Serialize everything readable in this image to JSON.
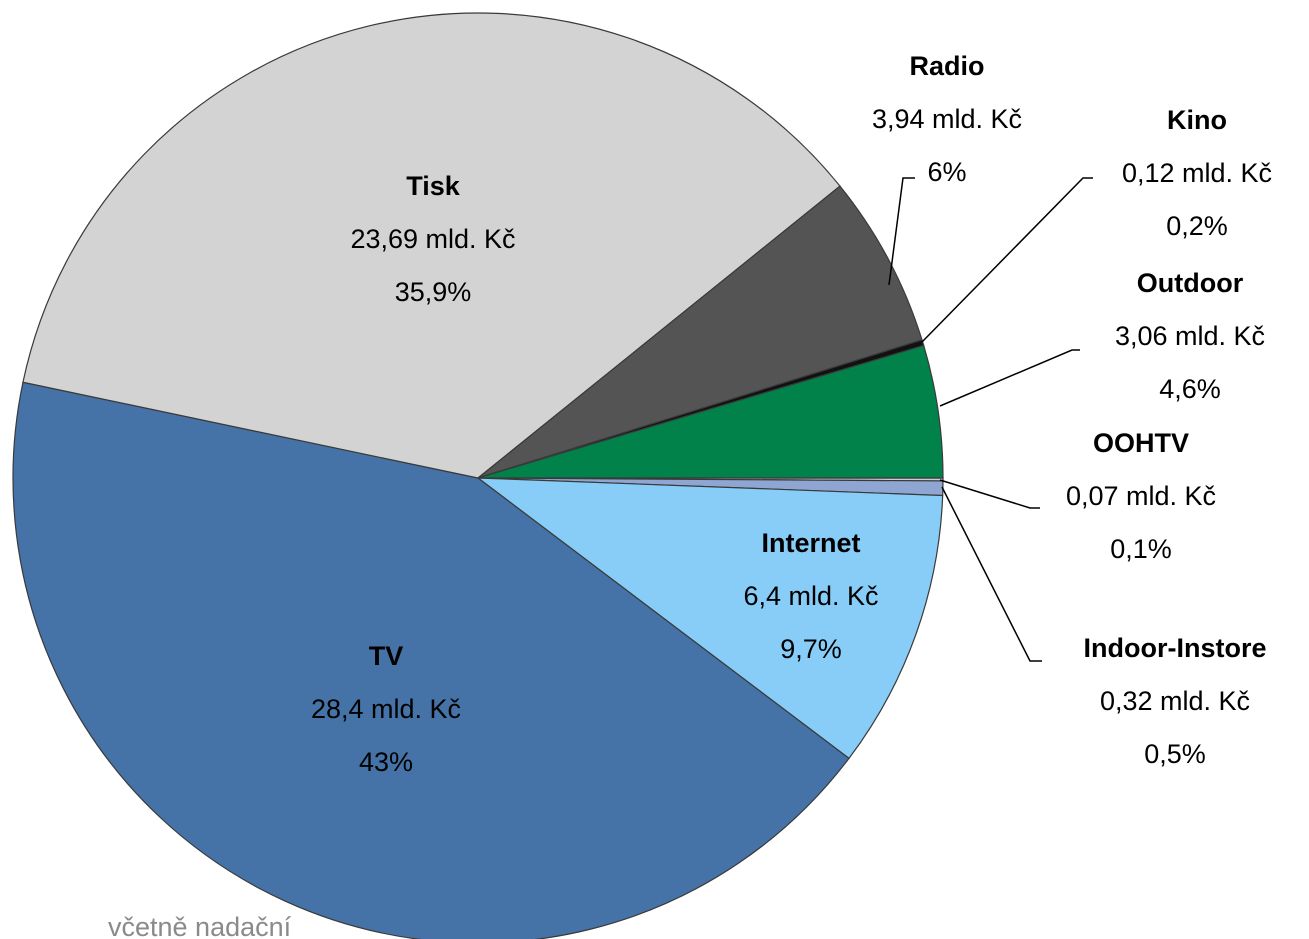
{
  "chart_data": {
    "type": "pie",
    "categories": [
      "OOHTV",
      "Indoor-Instore",
      "Internet",
      "TV",
      "Tisk",
      "Radio",
      "Kino",
      "Outdoor"
    ],
    "values": [
      0.1,
      0.5,
      9.7,
      43,
      35.9,
      6,
      0.2,
      4.6
    ],
    "value_labels": [
      "0,1%",
      "0,5%",
      "9,7%",
      "43%",
      "35,9%",
      "6%",
      "0,2%",
      "4,6%"
    ],
    "amounts": [
      0.07,
      0.32,
      6.4,
      28.4,
      23.69,
      3.94,
      0.12,
      3.06
    ],
    "amount_labels": [
      "0,07 mld. Kč",
      "0,32 mld. Kč",
      "6,4 mld. Kč",
      "28,4 mld. Kč",
      "23,69 mld. Kč",
      "3,94 mld. Kč",
      "0,12 mld. Kč",
      "3,06 mld. Kč"
    ],
    "colors": [
      "#c9cfd8",
      "#8fa6d2",
      "#87cdf7",
      "#4573a7",
      "#d3d3d3",
      "#545454",
      "#111111",
      "#00824a"
    ],
    "footnote": "včetně nadační"
  }
}
